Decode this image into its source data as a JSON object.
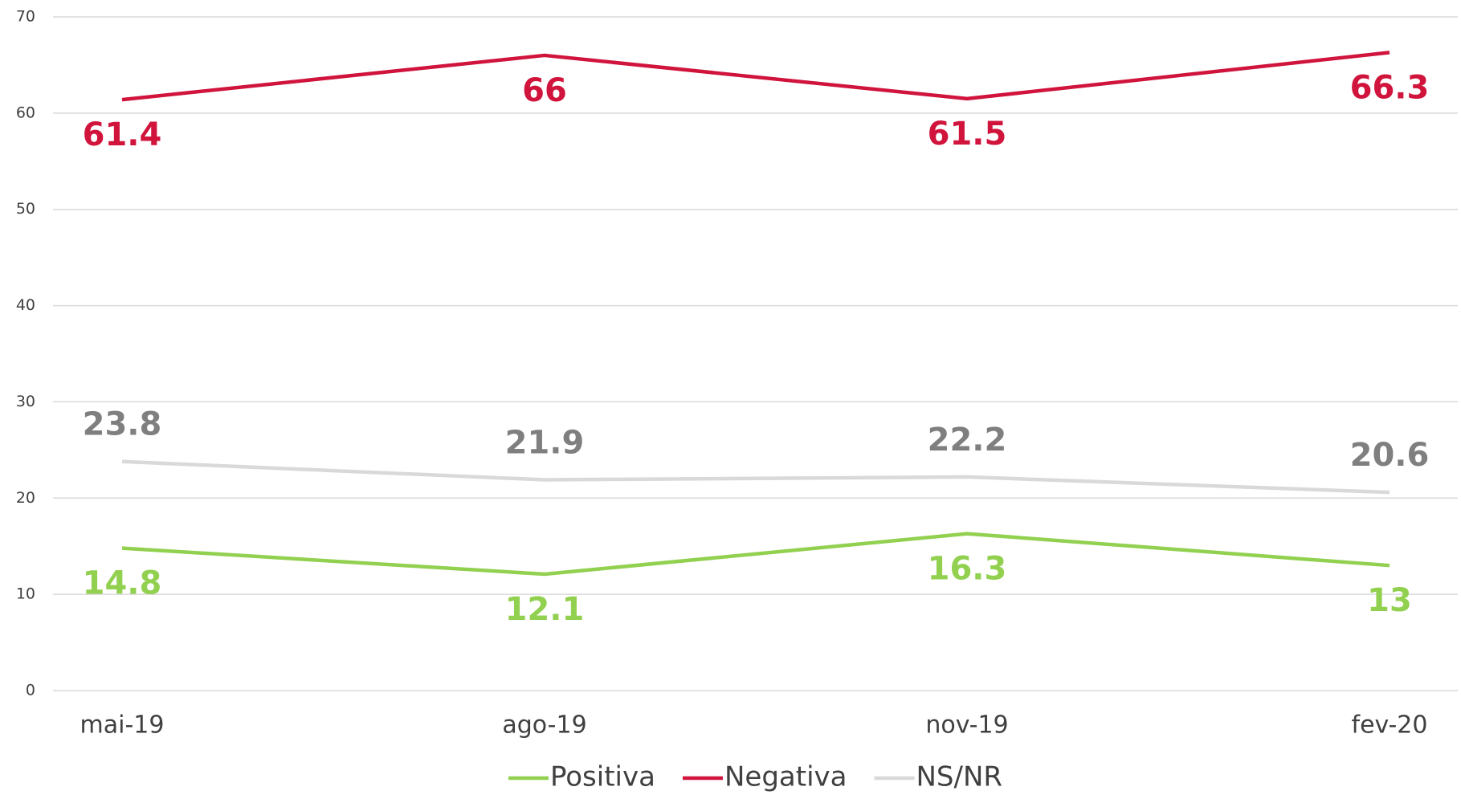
{
  "chart_data": {
    "type": "line",
    "categories": [
      "mai-19",
      "ago-19",
      "nov-19",
      "fev-20"
    ],
    "series": [
      {
        "name": "Positiva",
        "color": "#92d050",
        "label_color": "#92d050",
        "label_position": "below",
        "values": [
          14.8,
          12.1,
          16.3,
          13
        ]
      },
      {
        "name": "Negativa",
        "color": "#d0143c",
        "label_color": "#d0143c",
        "label_position": "below",
        "values": [
          61.4,
          66,
          61.5,
          66.3
        ]
      },
      {
        "name": "NS/NR",
        "color": "#d9d9d9",
        "label_color": "#7f7f7f",
        "label_position": "above",
        "values": [
          23.8,
          21.9,
          22.2,
          20.6
        ]
      }
    ],
    "ylim": [
      0,
      70
    ],
    "yticks": [
      0,
      10,
      20,
      30,
      40,
      50,
      60,
      70
    ],
    "grid": true,
    "legend": "bottom"
  }
}
